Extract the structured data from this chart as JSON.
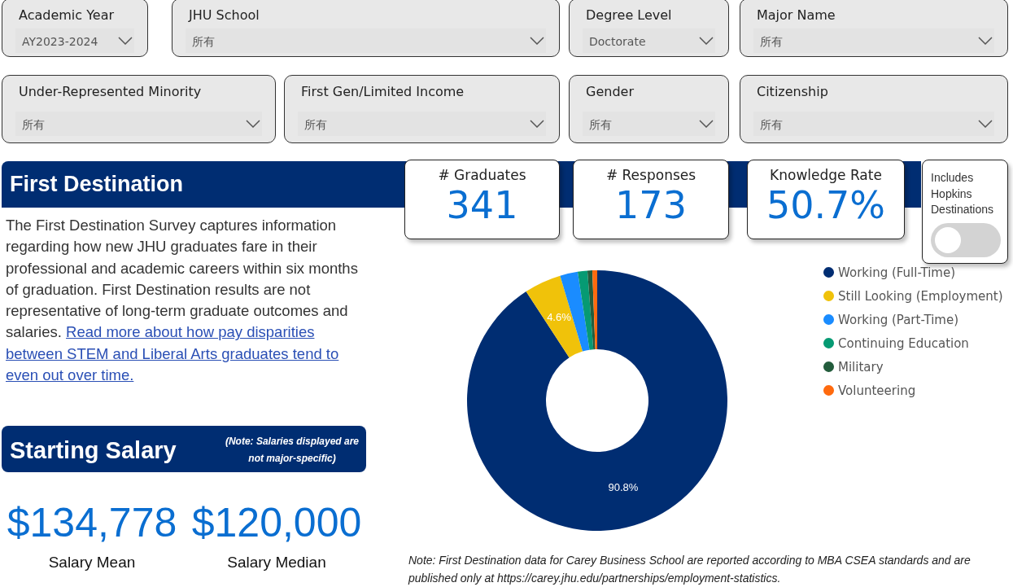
{
  "chart_data": [
    {
      "type": "other",
      "annotations": [
        "Academic Year",
        "AY2023-2024",
        "JHU School",
        "所有",
        "Degree Level",
        "Doctorate",
        "Major Name",
        "所有",
        "Under-Represented Minority",
        "所有",
        "First Gen/Limited Income",
        "所有",
        "Gender",
        "所有",
        "Citizenship",
        "所有"
      ]
    },
    {
      "type": "other",
      "title": "First Destination",
      "annotations": [
        "The First Destination Survey captures information regarding how new JHU graduates fare in their professional and academic careers within six months of graduation. First Destination results are not representative of long-term graduate outcomes and salaries.",
        "Read more about how pay disparities between STEM and Liberal Arts graduates tend to even out over time."
      ]
    },
    {
      "type": "other",
      "annotations": [
        "# Graduates",
        "341",
        "# Responses",
        "173",
        "Knowledge Rate",
        "50.7%",
        "Includes Hopkins Destinations"
      ]
    },
    {
      "type": "other",
      "title": "Starting Salary",
      "annotations": [
        "(Note: Salaries displayed are not major-specific)",
        "$134,778",
        "Salary Mean",
        "$120,000",
        "Salary Median"
      ]
    },
    {
      "type": "donut",
      "categories": [
        "Working (Full-Time)",
        "Still Looking (Employment)",
        "Working (Part-Time)",
        "Continuing Education",
        "Military",
        "Volunteering"
      ],
      "values": [
        90.8,
        4.6,
        2.2,
        1.2,
        0.6,
        0.6
      ],
      "colors": [
        "#002d72",
        "#f0c20a",
        "#1a8cff",
        "#069a73",
        "#235c3c",
        "#ff6a0e"
      ],
      "value_labels": [
        "90.8%",
        "4.6%",
        null,
        null,
        null,
        null
      ],
      "legend": "right",
      "annotations": [
        "Note: First Destination data for Carey Business School are reported according to MBA CSEA standards and are published only at https://carey.jhu.edu/partnerships/employment-statistics."
      ]
    }
  ]
}
